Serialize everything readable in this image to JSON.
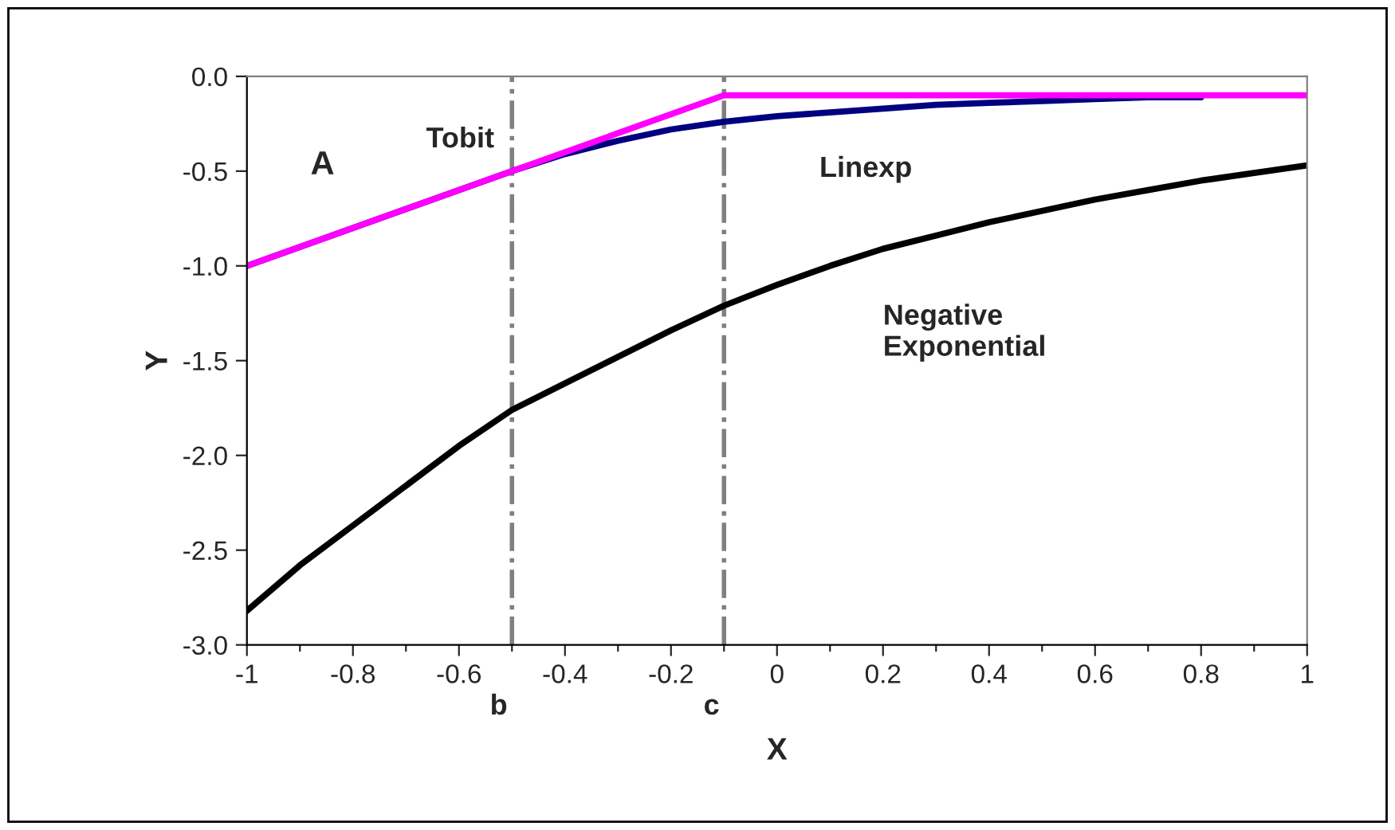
{
  "chart_data": {
    "type": "line",
    "xlabel": "X",
    "ylabel": "Y",
    "xlim": [
      -1,
      1
    ],
    "ylim": [
      -3,
      0
    ],
    "xticks": [
      -1,
      {
        "value": -0.9,
        "label": null
      },
      -0.8,
      {
        "value": -0.7,
        "label": null
      },
      -0.6,
      {
        "value": -0.5,
        "label": null
      },
      -0.4,
      {
        "value": -0.3,
        "label": null
      },
      -0.2,
      {
        "value": -0.1,
        "label": null
      },
      0,
      {
        "value": 0.1,
        "label": null
      },
      0.2,
      {
        "value": 0.3,
        "label": null
      },
      0.4,
      {
        "value": 0.5,
        "label": null
      },
      0.6,
      {
        "value": 0.7,
        "label": null
      },
      0.8,
      {
        "value": 0.9,
        "label": null
      },
      1
    ],
    "yticks": [
      {
        "value": 0,
        "label": "0.0"
      },
      {
        "value": -0.5,
        "label": "-0.5"
      },
      {
        "value": -1,
        "label": "-1.0"
      },
      {
        "value": -1.5,
        "label": "-1.5"
      },
      {
        "value": -2,
        "label": "-2.0"
      },
      {
        "value": -2.5,
        "label": "-2.5"
      },
      {
        "value": -3,
        "label": "-3.0"
      }
    ],
    "grid": false,
    "legend": false,
    "marker": "none",
    "line_style": "solid",
    "series": [
      {
        "color": "#000000",
        "x": [
          -1,
          -0.9,
          -0.8,
          -0.7,
          -0.6,
          -0.5,
          -0.4,
          -0.3,
          -0.2,
          -0.1,
          0,
          0.1,
          0.2,
          0.3,
          0.4,
          0.5,
          0.6,
          0.7,
          0.8,
          0.9,
          1
        ],
        "values": [
          -2.82,
          -2.58,
          -2.37,
          -2.16,
          -1.95,
          -1.76,
          -1.62,
          -1.48,
          -1.34,
          -1.21,
          -1.1,
          -1.0,
          -0.91,
          -0.84,
          -0.77,
          -0.71,
          -0.65,
          -0.6,
          -0.55,
          -0.51,
          -0.47
        ]
      },
      {
        "color": "#000080",
        "x": [
          -1,
          -0.5,
          -0.4,
          -0.3,
          -0.2,
          -0.1,
          0,
          0.1,
          0.2,
          0.3,
          0.4,
          0.5,
          0.6,
          0.7,
          0.8
        ],
        "values": [
          -1,
          -0.5,
          -0.41,
          -0.34,
          -0.28,
          -0.24,
          -0.21,
          -0.19,
          -0.17,
          -0.15,
          -0.14,
          -0.13,
          -0.12,
          -0.11,
          -0.11
        ]
      },
      {
        "color": "#ff00ff",
        "x": [
          -1,
          -0.1,
          1
        ],
        "values": [
          -1,
          -0.1,
          -0.1
        ]
      }
    ],
    "ref_lines": [
      {
        "axis": "x",
        "value": -0.5,
        "label": "b",
        "color": "#808080",
        "line_style": "dashdot"
      },
      {
        "axis": "x",
        "value": -0.1,
        "label": "c",
        "color": "#808080",
        "line_style": "dashdot"
      }
    ],
    "annotations": [
      "A",
      {
        "text": "Tobit",
        "x": -0.5,
        "y": -0.5
      },
      "Linexp",
      "Negative\nExponential"
    ]
  }
}
